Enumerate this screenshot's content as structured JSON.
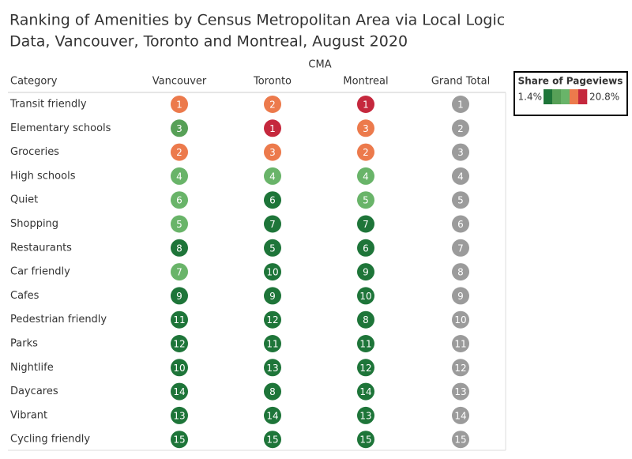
{
  "chart_data": {
    "type": "rank-table",
    "title": [
      "Ranking of Amenities by Census Metropolitan Area via Local Logic",
      "Data, Vancouver, Toronto and Montreal, August 2020"
    ],
    "group_label": "CMA",
    "row_header": "Category",
    "columns": [
      "Vancouver",
      "Toronto",
      "Montreal",
      "Grand Total"
    ],
    "rows": [
      {
        "category": "Transit friendly",
        "ranks": [
          1,
          2,
          1,
          1
        ],
        "colors": [
          "#ec7a4c",
          "#ec7a4c",
          "#c5283d",
          "#9b9b9b"
        ]
      },
      {
        "category": "Elementary schools",
        "ranks": [
          3,
          1,
          3,
          2
        ],
        "colors": [
          "#57a057",
          "#c5283d",
          "#ec7a4c",
          "#9b9b9b"
        ]
      },
      {
        "category": "Groceries",
        "ranks": [
          2,
          3,
          2,
          3
        ],
        "colors": [
          "#ec7a4c",
          "#ec7a4c",
          "#ec7a4c",
          "#9b9b9b"
        ]
      },
      {
        "category": "High schools",
        "ranks": [
          4,
          4,
          4,
          4
        ],
        "colors": [
          "#69b469",
          "#69b469",
          "#69b469",
          "#9b9b9b"
        ]
      },
      {
        "category": "Quiet",
        "ranks": [
          6,
          6,
          5,
          5
        ],
        "colors": [
          "#69b469",
          "#1e7539",
          "#69b469",
          "#9b9b9b"
        ]
      },
      {
        "category": "Shopping",
        "ranks": [
          5,
          7,
          7,
          6
        ],
        "colors": [
          "#69b469",
          "#1e7539",
          "#1e7539",
          "#9b9b9b"
        ]
      },
      {
        "category": "Restaurants",
        "ranks": [
          8,
          5,
          6,
          7
        ],
        "colors": [
          "#1e7539",
          "#1e7539",
          "#1e7539",
          "#9b9b9b"
        ]
      },
      {
        "category": "Car friendly",
        "ranks": [
          7,
          10,
          9,
          8
        ],
        "colors": [
          "#69b469",
          "#1e7539",
          "#1e7539",
          "#9b9b9b"
        ]
      },
      {
        "category": "Cafes",
        "ranks": [
          9,
          9,
          10,
          9
        ],
        "colors": [
          "#1e7539",
          "#1e7539",
          "#1e7539",
          "#9b9b9b"
        ]
      },
      {
        "category": "Pedestrian friendly",
        "ranks": [
          11,
          12,
          8,
          10
        ],
        "colors": [
          "#1e7539",
          "#1e7539",
          "#1e7539",
          "#9b9b9b"
        ]
      },
      {
        "category": "Parks",
        "ranks": [
          12,
          11,
          11,
          11
        ],
        "colors": [
          "#1e7539",
          "#1e7539",
          "#1e7539",
          "#9b9b9b"
        ]
      },
      {
        "category": "Nightlife",
        "ranks": [
          10,
          13,
          12,
          12
        ],
        "colors": [
          "#1e7539",
          "#1e7539",
          "#1e7539",
          "#9b9b9b"
        ]
      },
      {
        "category": "Daycares",
        "ranks": [
          14,
          8,
          14,
          13
        ],
        "colors": [
          "#1e7539",
          "#1e7539",
          "#1e7539",
          "#9b9b9b"
        ]
      },
      {
        "category": "Vibrant",
        "ranks": [
          13,
          14,
          13,
          14
        ],
        "colors": [
          "#1e7539",
          "#1e7539",
          "#1e7539",
          "#9b9b9b"
        ]
      },
      {
        "category": "Cycling friendly",
        "ranks": [
          15,
          15,
          15,
          15
        ],
        "colors": [
          "#1e7539",
          "#1e7539",
          "#1e7539",
          "#9b9b9b"
        ]
      }
    ],
    "legend": {
      "title": "Share of Pageviews",
      "min_label": "1.4%",
      "max_label": "20.8%",
      "colors": [
        "#1e7539",
        "#57a057",
        "#69b469",
        "#ec7a4c",
        "#c5283d"
      ]
    }
  }
}
